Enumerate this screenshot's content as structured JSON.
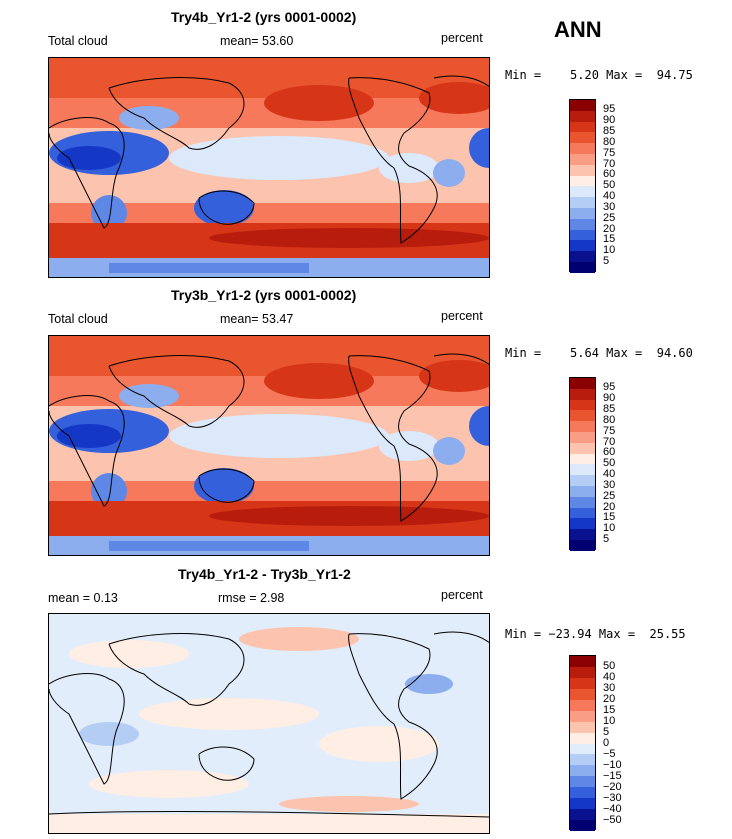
{
  "season": "ANN",
  "panels": [
    {
      "title": "Try4b_Yr1-2 (yrs 0001-0002)",
      "left_label": "Total cloud",
      "mean_text": "mean=  53.60",
      "units": "percent",
      "minmax": "Min =    5.20 Max =  94.75",
      "levels": [
        "95",
        "90",
        "85",
        "80",
        "75",
        "70",
        "60",
        "50",
        "40",
        "30",
        "25",
        "20",
        "15",
        "10",
        "5"
      ]
    },
    {
      "title": "Try3b_Yr1-2 (yrs 0001-0002)",
      "left_label": "Total cloud",
      "mean_text": "mean=  53.47",
      "units": "percent",
      "minmax": "Min =    5.64 Max =  94.60",
      "levels": [
        "95",
        "90",
        "85",
        "80",
        "75",
        "70",
        "60",
        "50",
        "40",
        "30",
        "25",
        "20",
        "15",
        "10",
        "5"
      ]
    },
    {
      "title": "Try4b_Yr1-2 - Try3b_Yr1-2",
      "left_label": "mean =    0.13",
      "mean_text": "rmse =    2.98",
      "units": "percent",
      "minmax": "Min = −23.94 Max =  25.55",
      "levels": [
        "50",
        "40",
        "30",
        "20",
        "15",
        "10",
        "5",
        "0",
        "−5",
        "−10",
        "−15",
        "−20",
        "−30",
        "−40",
        "−50"
      ]
    }
  ],
  "colors": {
    "abs_scale": [
      "#8b0000",
      "#b71c0c",
      "#d73518",
      "#e8552f",
      "#f5795a",
      "#f99e84",
      "#fcc4ae",
      "#feeee4",
      "#dbe9fb",
      "#b3cdf4",
      "#8caeef",
      "#5f88e6",
      "#3560db",
      "#1537c6",
      "#0a118f",
      "#000070"
    ],
    "diff_scale": [
      "#8b0000",
      "#b71c0c",
      "#d73518",
      "#e8552f",
      "#f5795a",
      "#f99e84",
      "#fcc4ae",
      "#feeee4",
      "#e2edfb",
      "#b3cdf4",
      "#8caeef",
      "#5f88e6",
      "#3560db",
      "#1537c6",
      "#0a118f",
      "#000070"
    ]
  }
}
